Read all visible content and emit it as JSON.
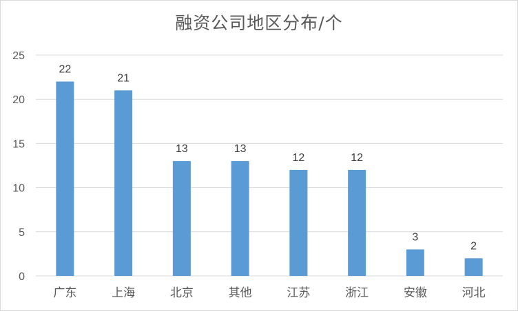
{
  "chart_data": {
    "type": "bar",
    "title": "融资公司地区分布/个",
    "categories": [
      "广东",
      "上海",
      "北京",
      "其他",
      "江苏",
      "浙江",
      "安徽",
      "河北"
    ],
    "values": [
      22,
      21,
      13,
      13,
      12,
      12,
      3,
      2
    ],
    "xlabel": "",
    "ylabel": "",
    "ylim": [
      0,
      25
    ],
    "yticks": [
      0,
      5,
      10,
      15,
      20,
      25
    ],
    "grid": true,
    "legend": "none",
    "bar_color": "#5b9bd5",
    "grid_color": "#d9d9d9",
    "text_color": "#595959"
  }
}
